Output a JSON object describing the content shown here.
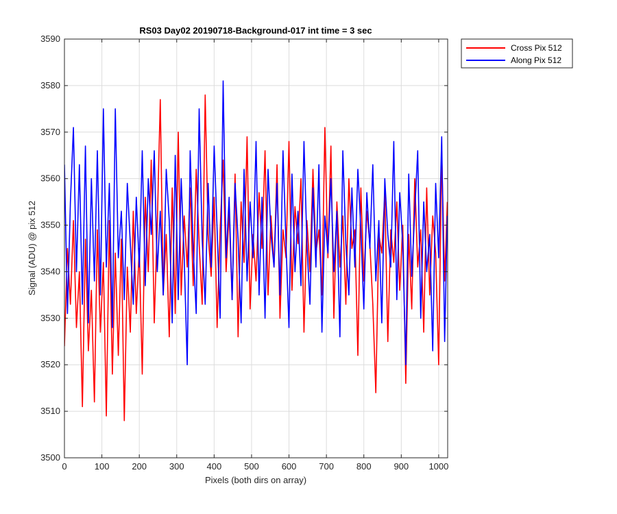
{
  "chart_data": {
    "type": "line",
    "title": "RS03 Day02 20190718-Background-017 int time = 3 sec",
    "xlabel": "Pixels (both dirs on array)",
    "ylabel": "Signal (ADU) @ pix 512",
    "xlim": [
      0,
      1024
    ],
    "ylim": [
      3500,
      3590
    ],
    "xticks": [
      0,
      100,
      200,
      300,
      400,
      500,
      600,
      700,
      800,
      900,
      1000
    ],
    "yticks": [
      3500,
      3510,
      3520,
      3530,
      3540,
      3550,
      3560,
      3570,
      3580,
      3590
    ],
    "grid": true,
    "legend_position": "outside-top-right",
    "colors": {
      "cross": "#ff0000",
      "along": "#0000ff"
    },
    "series": [
      {
        "name": "Cross Pix 512",
        "color": "#ff0000",
        "x": [
          0,
          8,
          16,
          24,
          32,
          40,
          48,
          56,
          64,
          72,
          80,
          88,
          96,
          104,
          112,
          120,
          128,
          136,
          144,
          152,
          160,
          168,
          176,
          184,
          192,
          200,
          208,
          216,
          224,
          232,
          240,
          248,
          256,
          264,
          272,
          280,
          288,
          296,
          304,
          312,
          320,
          328,
          336,
          344,
          352,
          360,
          368,
          376,
          384,
          392,
          400,
          408,
          416,
          424,
          432,
          440,
          448,
          456,
          464,
          472,
          480,
          488,
          496,
          504,
          512,
          520,
          528,
          536,
          544,
          552,
          560,
          568,
          576,
          584,
          592,
          600,
          608,
          616,
          624,
          632,
          640,
          648,
          656,
          664,
          672,
          680,
          688,
          696,
          704,
          712,
          720,
          728,
          736,
          744,
          752,
          760,
          768,
          776,
          784,
          792,
          800,
          808,
          816,
          824,
          832,
          840,
          848,
          856,
          864,
          872,
          880,
          888,
          896,
          904,
          912,
          920,
          928,
          936,
          944,
          952,
          960,
          968,
          976,
          984,
          992,
          1000,
          1008,
          1016,
          1023
        ],
        "y": [
          3524,
          3545,
          3533,
          3551,
          3528,
          3540,
          3511,
          3547,
          3523,
          3536,
          3512,
          3549,
          3527,
          3542,
          3509,
          3551,
          3518,
          3544,
          3522,
          3547,
          3508,
          3541,
          3527,
          3553,
          3531,
          3545,
          3518,
          3556,
          3540,
          3564,
          3529,
          3550,
          3577,
          3535,
          3548,
          3526,
          3558,
          3531,
          3570,
          3535,
          3552,
          3541,
          3558,
          3537,
          3562,
          3546,
          3533,
          3578,
          3548,
          3539,
          3556,
          3528,
          3549,
          3564,
          3540,
          3553,
          3534,
          3561,
          3526,
          3555,
          3542,
          3569,
          3532,
          3548,
          3538,
          3557,
          3545,
          3566,
          3535,
          3552,
          3541,
          3563,
          3530,
          3549,
          3543,
          3568,
          3536,
          3554,
          3546,
          3560,
          3527,
          3551,
          3540,
          3562,
          3544,
          3549,
          3535,
          3571,
          3543,
          3567,
          3530,
          3555,
          3541,
          3552,
          3533,
          3560,
          3545,
          3549,
          3522,
          3558,
          3538,
          3553,
          3546,
          3533,
          3514,
          3548,
          3544,
          3557,
          3525,
          3549,
          3542,
          3555,
          3536,
          3550,
          3516,
          3548,
          3532,
          3560,
          3541,
          3549,
          3527,
          3558,
          3535,
          3552,
          3544,
          3520,
          3566,
          3538,
          3555
        ]
      },
      {
        "name": "Along Pix 512",
        "color": "#0000ff",
        "x": [
          0,
          8,
          16,
          24,
          32,
          40,
          48,
          56,
          64,
          72,
          80,
          88,
          96,
          104,
          112,
          120,
          128,
          136,
          144,
          152,
          160,
          168,
          176,
          184,
          192,
          200,
          208,
          216,
          224,
          232,
          240,
          248,
          256,
          264,
          272,
          280,
          288,
          296,
          304,
          312,
          320,
          328,
          336,
          344,
          352,
          360,
          368,
          376,
          384,
          392,
          400,
          408,
          416,
          424,
          432,
          440,
          448,
          456,
          464,
          472,
          480,
          488,
          496,
          504,
          512,
          520,
          528,
          536,
          544,
          552,
          560,
          568,
          576,
          584,
          592,
          600,
          608,
          616,
          624,
          632,
          640,
          648,
          656,
          664,
          672,
          680,
          688,
          696,
          704,
          712,
          720,
          728,
          736,
          744,
          752,
          760,
          768,
          776,
          784,
          792,
          800,
          808,
          816,
          824,
          832,
          840,
          848,
          856,
          864,
          872,
          880,
          888,
          896,
          904,
          912,
          920,
          928,
          936,
          944,
          952,
          960,
          968,
          976,
          984,
          992,
          1000,
          1008,
          1016,
          1023
        ],
        "y": [
          3563,
          3531,
          3555,
          3571,
          3540,
          3563,
          3533,
          3567,
          3529,
          3560,
          3538,
          3566,
          3535,
          3575,
          3541,
          3559,
          3528,
          3575,
          3543,
          3553,
          3534,
          3559,
          3546,
          3533,
          3556,
          3541,
          3566,
          3537,
          3560,
          3548,
          3566,
          3540,
          3553,
          3535,
          3562,
          3551,
          3529,
          3565,
          3534,
          3560,
          3543,
          3520,
          3566,
          3545,
          3531,
          3575,
          3547,
          3533,
          3559,
          3541,
          3567,
          3549,
          3530,
          3581,
          3543,
          3556,
          3534,
          3559,
          3547,
          3529,
          3562,
          3538,
          3555,
          3543,
          3568,
          3535,
          3556,
          3530,
          3562,
          3548,
          3541,
          3559,
          3535,
          3566,
          3546,
          3528,
          3561,
          3540,
          3553,
          3537,
          3568,
          3546,
          3533,
          3558,
          3541,
          3563,
          3527,
          3552,
          3544,
          3560,
          3540,
          3553,
          3526,
          3566,
          3546,
          3535,
          3558,
          3541,
          3562,
          3549,
          3532,
          3557,
          3545,
          3563,
          3538,
          3551,
          3529,
          3560,
          3548,
          3541,
          3568,
          3534,
          3557,
          3546,
          3520,
          3561,
          3539,
          3553,
          3566,
          3530,
          3555,
          3540,
          3548,
          3523,
          3559,
          3543,
          3569,
          3525,
          3552
        ]
      }
    ]
  }
}
